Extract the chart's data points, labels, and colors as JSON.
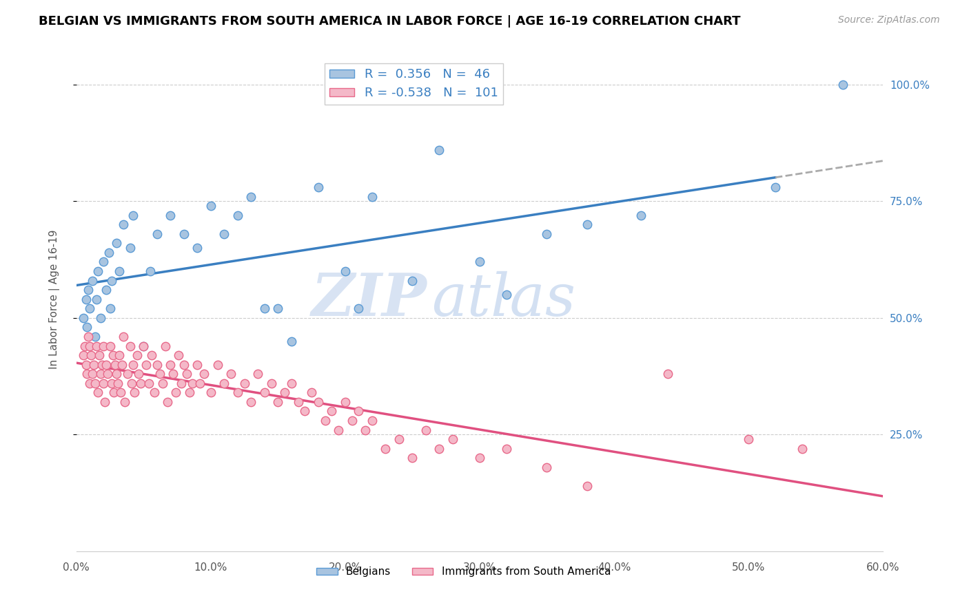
{
  "title": "BELGIAN VS IMMIGRANTS FROM SOUTH AMERICA IN LABOR FORCE | AGE 16-19 CORRELATION CHART",
  "source": "Source: ZipAtlas.com",
  "ylabel": "In Labor Force | Age 16-19",
  "xlim": [
    0.0,
    0.6
  ],
  "ylim": [
    0.0,
    1.08
  ],
  "xtick_labels": [
    "0.0%",
    "10.0%",
    "20.0%",
    "30.0%",
    "40.0%",
    "50.0%",
    "60.0%"
  ],
  "xtick_vals": [
    0.0,
    0.1,
    0.2,
    0.3,
    0.4,
    0.5,
    0.6
  ],
  "right_ytick_labels": [
    "25.0%",
    "50.0%",
    "75.0%",
    "100.0%"
  ],
  "right_ytick_vals": [
    0.25,
    0.5,
    0.75,
    1.0
  ],
  "belgian_color": "#a8c4e0",
  "belgian_edge_color": "#5b9bd5",
  "sa_color": "#f4b8c8",
  "sa_edge_color": "#e8698a",
  "belgian_R": 0.356,
  "belgian_N": 46,
  "sa_R": -0.538,
  "sa_N": 101,
  "belgian_line_color": "#3a7fc1",
  "sa_line_color": "#e05080",
  "watermark_zip": "ZIP",
  "watermark_atlas": "atlas",
  "legend_text_color": "#3a7fc1",
  "belgian_x": [
    0.005,
    0.007,
    0.008,
    0.009,
    0.01,
    0.012,
    0.014,
    0.015,
    0.016,
    0.018,
    0.02,
    0.022,
    0.024,
    0.025,
    0.026,
    0.03,
    0.032,
    0.035,
    0.04,
    0.042,
    0.05,
    0.055,
    0.06,
    0.07,
    0.08,
    0.09,
    0.1,
    0.11,
    0.12,
    0.13,
    0.14,
    0.15,
    0.16,
    0.18,
    0.2,
    0.21,
    0.22,
    0.25,
    0.27,
    0.3,
    0.32,
    0.35,
    0.38,
    0.42,
    0.52,
    0.57
  ],
  "belgian_y": [
    0.5,
    0.54,
    0.48,
    0.56,
    0.52,
    0.58,
    0.46,
    0.54,
    0.6,
    0.5,
    0.62,
    0.56,
    0.64,
    0.52,
    0.58,
    0.66,
    0.6,
    0.7,
    0.65,
    0.72,
    0.44,
    0.6,
    0.68,
    0.72,
    0.68,
    0.65,
    0.74,
    0.68,
    0.72,
    0.76,
    0.52,
    0.52,
    0.45,
    0.78,
    0.6,
    0.52,
    0.76,
    0.58,
    0.86,
    0.62,
    0.55,
    0.68,
    0.7,
    0.72,
    0.78,
    1.0
  ],
  "sa_x": [
    0.005,
    0.006,
    0.007,
    0.008,
    0.009,
    0.01,
    0.01,
    0.011,
    0.012,
    0.013,
    0.014,
    0.015,
    0.016,
    0.017,
    0.018,
    0.019,
    0.02,
    0.02,
    0.021,
    0.022,
    0.023,
    0.025,
    0.026,
    0.027,
    0.028,
    0.029,
    0.03,
    0.031,
    0.032,
    0.033,
    0.034,
    0.035,
    0.036,
    0.038,
    0.04,
    0.041,
    0.042,
    0.043,
    0.045,
    0.046,
    0.048,
    0.05,
    0.052,
    0.054,
    0.056,
    0.058,
    0.06,
    0.062,
    0.064,
    0.066,
    0.068,
    0.07,
    0.072,
    0.074,
    0.076,
    0.078,
    0.08,
    0.082,
    0.084,
    0.086,
    0.09,
    0.092,
    0.095,
    0.1,
    0.105,
    0.11,
    0.115,
    0.12,
    0.125,
    0.13,
    0.135,
    0.14,
    0.145,
    0.15,
    0.155,
    0.16,
    0.165,
    0.17,
    0.175,
    0.18,
    0.185,
    0.19,
    0.195,
    0.2,
    0.205,
    0.21,
    0.215,
    0.22,
    0.23,
    0.24,
    0.25,
    0.26,
    0.27,
    0.28,
    0.3,
    0.32,
    0.35,
    0.38,
    0.44,
    0.5,
    0.54
  ],
  "sa_y": [
    0.42,
    0.44,
    0.4,
    0.38,
    0.46,
    0.36,
    0.44,
    0.42,
    0.38,
    0.4,
    0.36,
    0.44,
    0.34,
    0.42,
    0.38,
    0.4,
    0.36,
    0.44,
    0.32,
    0.4,
    0.38,
    0.44,
    0.36,
    0.42,
    0.34,
    0.4,
    0.38,
    0.36,
    0.42,
    0.34,
    0.4,
    0.46,
    0.32,
    0.38,
    0.44,
    0.36,
    0.4,
    0.34,
    0.42,
    0.38,
    0.36,
    0.44,
    0.4,
    0.36,
    0.42,
    0.34,
    0.4,
    0.38,
    0.36,
    0.44,
    0.32,
    0.4,
    0.38,
    0.34,
    0.42,
    0.36,
    0.4,
    0.38,
    0.34,
    0.36,
    0.4,
    0.36,
    0.38,
    0.34,
    0.4,
    0.36,
    0.38,
    0.34,
    0.36,
    0.32,
    0.38,
    0.34,
    0.36,
    0.32,
    0.34,
    0.36,
    0.32,
    0.3,
    0.34,
    0.32,
    0.28,
    0.3,
    0.26,
    0.32,
    0.28,
    0.3,
    0.26,
    0.28,
    0.22,
    0.24,
    0.2,
    0.26,
    0.22,
    0.24,
    0.2,
    0.22,
    0.18,
    0.14,
    0.38,
    0.24,
    0.22
  ]
}
